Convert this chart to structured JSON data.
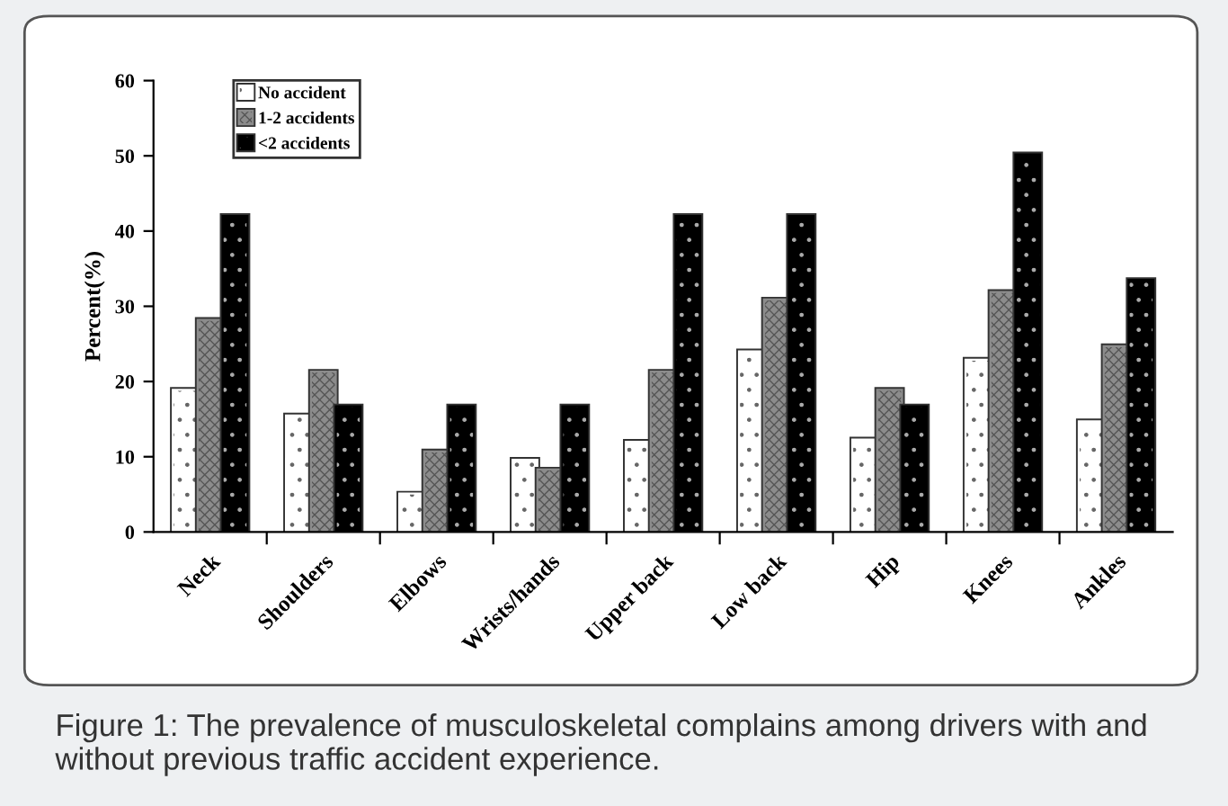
{
  "chart_data": {
    "type": "bar",
    "categories": [
      "Neck",
      "Shoulders",
      "Elbows",
      "Wrists/hands",
      "Upper back",
      "Low back",
      "Hip",
      "Knees",
      "Ankles"
    ],
    "ylabel": "Percent(%)",
    "series": [
      {
        "name": "No accident",
        "color": "#ffffff",
        "values": [
          18.9,
          15.5,
          5.1,
          9.6,
          12,
          24,
          12.3,
          22.9,
          14.7
        ]
      },
      {
        "name": "1-2 accidents",
        "color": "#8c8c8c",
        "values": [
          28.2,
          21.3,
          10.7,
          8.3,
          21.3,
          30.9,
          18.9,
          31.9,
          24.7
        ]
      },
      {
        "name": "<2 accidents",
        "color": "#000000",
        "values": [
          42,
          16.7,
          16.7,
          16.7,
          42,
          42,
          16.7,
          50.2,
          33.5
        ]
      }
    ],
    "ylim": [
      0,
      60
    ],
    "yticks": [
      0,
      10,
      20,
      30,
      40,
      50,
      60
    ],
    "grid": false,
    "legend": "top left",
    "annotations": [
      "Figure 1: The prevalence of musculoskeletal complains among drivers with and without previous traffic accident experience."
    ]
  }
}
